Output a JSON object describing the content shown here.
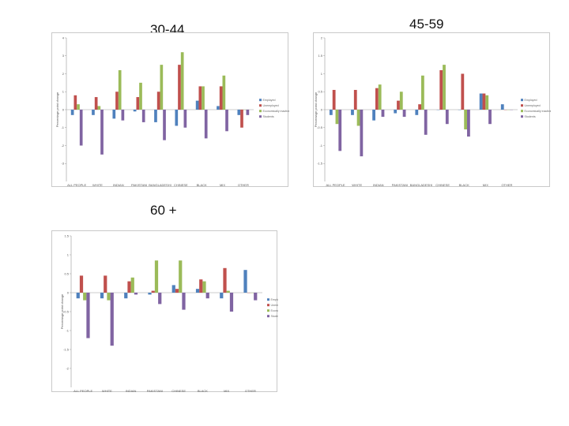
{
  "chart_data": [
    {
      "type": "bar",
      "title": "30-44",
      "ylabel": "Percentage point change",
      "ylim": [
        -4,
        4
      ],
      "yticks": [
        4,
        3,
        2,
        1,
        0,
        -1,
        -2,
        -3
      ],
      "categories": [
        "ALL PEOPLE",
        "WHITE",
        "INDIAN",
        "PAKISTANI",
        "BANGLADESHI",
        "CHINESE",
        "BLACK",
        "MIX",
        "OTHER"
      ],
      "series": [
        {
          "name": "Employed",
          "color": "#4f81bd",
          "values": [
            -0.3,
            -0.3,
            -0.5,
            -0.1,
            -0.7,
            -0.9,
            0.5,
            0.2,
            -0.3
          ]
        },
        {
          "name": "Unemployed",
          "color": "#c0504d",
          "values": [
            0.8,
            0.7,
            1.0,
            0.7,
            1.0,
            2.5,
            1.3,
            1.3,
            -1.0
          ]
        },
        {
          "name": "Economically inactive",
          "color": "#9bbb59",
          "values": [
            0.3,
            0.2,
            2.2,
            1.5,
            2.5,
            3.2,
            1.3,
            1.9,
            0.0
          ]
        },
        {
          "name": "Students",
          "color": "#8064a2",
          "values": [
            -2.0,
            -2.5,
            -0.6,
            -0.7,
            -1.7,
            -1.0,
            -1.6,
            -1.2,
            -0.3
          ]
        }
      ]
    },
    {
      "type": "bar",
      "title": "45-59",
      "ylabel": "Percentage point change",
      "ylim": [
        -2,
        2
      ],
      "yticks": [
        2,
        1.5,
        1,
        0.5,
        0,
        -0.5,
        -1,
        -1.5
      ],
      "categories": [
        "ALL PEOPLE",
        "WHITE",
        "INDIAN",
        "PAKISTANI",
        "BANGLADESHI",
        "CHINESE",
        "BLACK",
        "MIX",
        "OTHER"
      ],
      "series": [
        {
          "name": "Employed",
          "color": "#4f81bd",
          "values": [
            -0.15,
            -0.15,
            -0.3,
            -0.1,
            -0.15,
            -0.0,
            0.0,
            0.45,
            0.15
          ]
        },
        {
          "name": "Unemployed",
          "color": "#c0504d",
          "values": [
            0.55,
            0.55,
            0.6,
            0.25,
            0.15,
            1.1,
            1.0,
            0.45,
            0.0
          ]
        },
        {
          "name": "Economically inactive",
          "color": "#9bbb59",
          "values": [
            -0.4,
            -0.45,
            0.7,
            0.5,
            0.95,
            1.25,
            -0.55,
            0.4,
            0.0
          ]
        },
        {
          "name": "Students",
          "color": "#8064a2",
          "values": [
            -1.15,
            -1.3,
            -0.2,
            -0.2,
            -0.7,
            -0.4,
            -0.75,
            -0.4,
            0.0
          ]
        }
      ]
    },
    {
      "type": "bar",
      "title": "60 +",
      "ylabel": "Percentage point change",
      "ylim": [
        -2.5,
        1.5
      ],
      "yticks": [
        1.5,
        1,
        0.5,
        0,
        -0.5,
        -1,
        -1.5,
        -2
      ],
      "categories": [
        "ALL PEOPLE",
        "WHITE",
        "INDIAN",
        "PAKISTANI",
        "CHINESE",
        "BLACK",
        "MIX",
        "OTHER"
      ],
      "series": [
        {
          "name": "Employed",
          "color": "#4f81bd",
          "values": [
            -0.15,
            -0.15,
            -0.15,
            -0.05,
            0.2,
            0.1,
            -0.15,
            0.6
          ]
        },
        {
          "name": "Unemployed",
          "color": "#c0504d",
          "values": [
            0.45,
            0.45,
            0.3,
            0.05,
            0.1,
            0.35,
            0.65,
            0.0
          ]
        },
        {
          "name": "Economically inactive",
          "color": "#9bbb59",
          "values": [
            -0.2,
            -0.2,
            0.4,
            0.85,
            0.85,
            0.3,
            0.05,
            0.0
          ]
        },
        {
          "name": "Students",
          "color": "#8064a2",
          "values": [
            -1.2,
            -1.4,
            -0.05,
            -0.3,
            -0.45,
            -0.15,
            -0.5,
            -0.2
          ]
        }
      ]
    }
  ]
}
